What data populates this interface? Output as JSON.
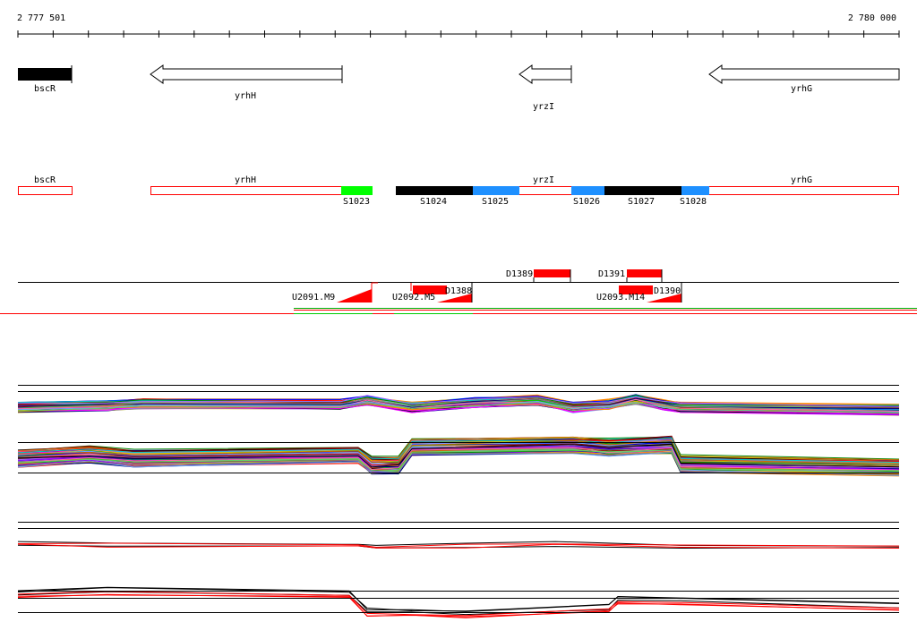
{
  "ruler": {
    "start_label": "2 777 501",
    "end_label": "2 780 000"
  },
  "genes": [
    {
      "name": "bscR",
      "style": "filled"
    },
    {
      "name": "yrhH",
      "style": "outline"
    },
    {
      "name": "yrzI",
      "style": "outline"
    },
    {
      "name": "yrhG",
      "style": "outline"
    }
  ],
  "segments_track": {
    "gene_labels": [
      "bscR",
      "yrhH",
      "yrzI",
      "yrhG"
    ],
    "segment_labels": [
      "S1023",
      "S1024",
      "S1025",
      "S1026",
      "S1027",
      "S1028"
    ]
  },
  "features_track": {
    "upper_labels": [
      "D1389",
      "D1391"
    ],
    "lower_labels": [
      "U2091.M9",
      "U2092.M5",
      "D1388",
      "U2093.M14",
      "D1390"
    ]
  },
  "colors": {
    "gene_fill": "#000000",
    "outline_red": "#ff0000",
    "green": "#00ff00",
    "blue": "#1e90ff",
    "black": "#000000",
    "feature_red": "#ff0000"
  }
}
